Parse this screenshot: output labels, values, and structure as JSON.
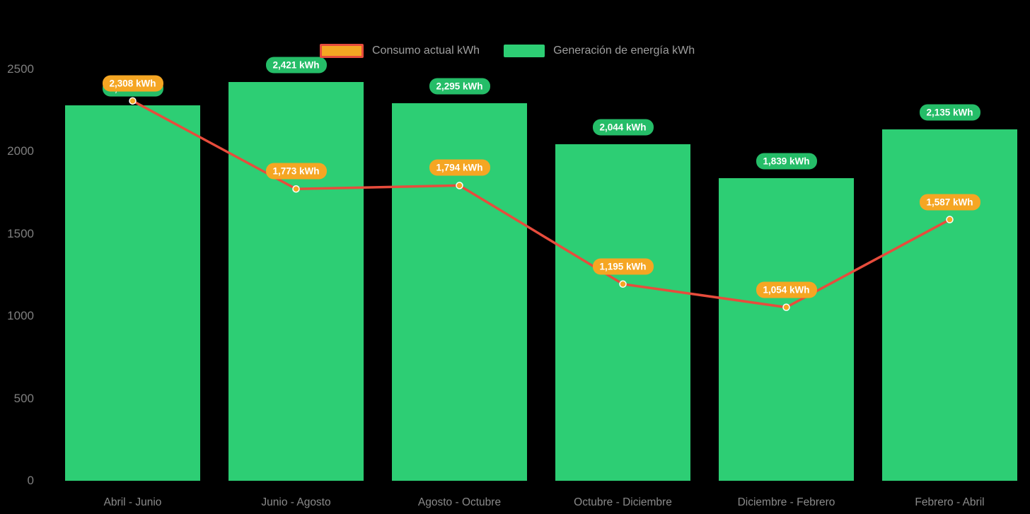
{
  "chart_data": {
    "type": "bar",
    "subtype": "bar-line-combo",
    "title": "",
    "categories": [
      "Abril - Junio",
      "Junio - Agosto",
      "Agosto - Octubre",
      "Octubre - Diciembre",
      "Diciembre - Febrero",
      "Febrero - Abril"
    ],
    "series": [
      {
        "name": "Generación de energía kWh",
        "type": "bar",
        "color": "#2dce74",
        "label_bg": "#25bd68",
        "values": [
          2280,
          2421,
          2295,
          2044,
          1839,
          2135
        ],
        "labels": [
          "2,280 kWh",
          "2,421 kWh",
          "2,295 kWh",
          "2,044 kWh",
          "1,839 kWh",
          "2,135 kWh"
        ]
      },
      {
        "name": "Consumo actual kWh",
        "type": "line",
        "color": "#e74c3c",
        "marker_color": "#f5a623",
        "label_bg": "#f5a623",
        "values": [
          2308,
          1773,
          1794,
          1195,
          1054,
          1587
        ],
        "labels": [
          "2,308 kWh",
          "1,773 kWh",
          "1,794 kWh",
          "1,195 kWh",
          "1,054 kWh",
          "1,587 kWh"
        ]
      }
    ],
    "y_ticks": [
      0,
      500,
      1000,
      1500,
      2000,
      2500
    ],
    "ylim": [
      0,
      2650
    ],
    "legend_position": "top",
    "grid": false,
    "background": "#000000",
    "axis_text_color": "#8a8a8a"
  }
}
